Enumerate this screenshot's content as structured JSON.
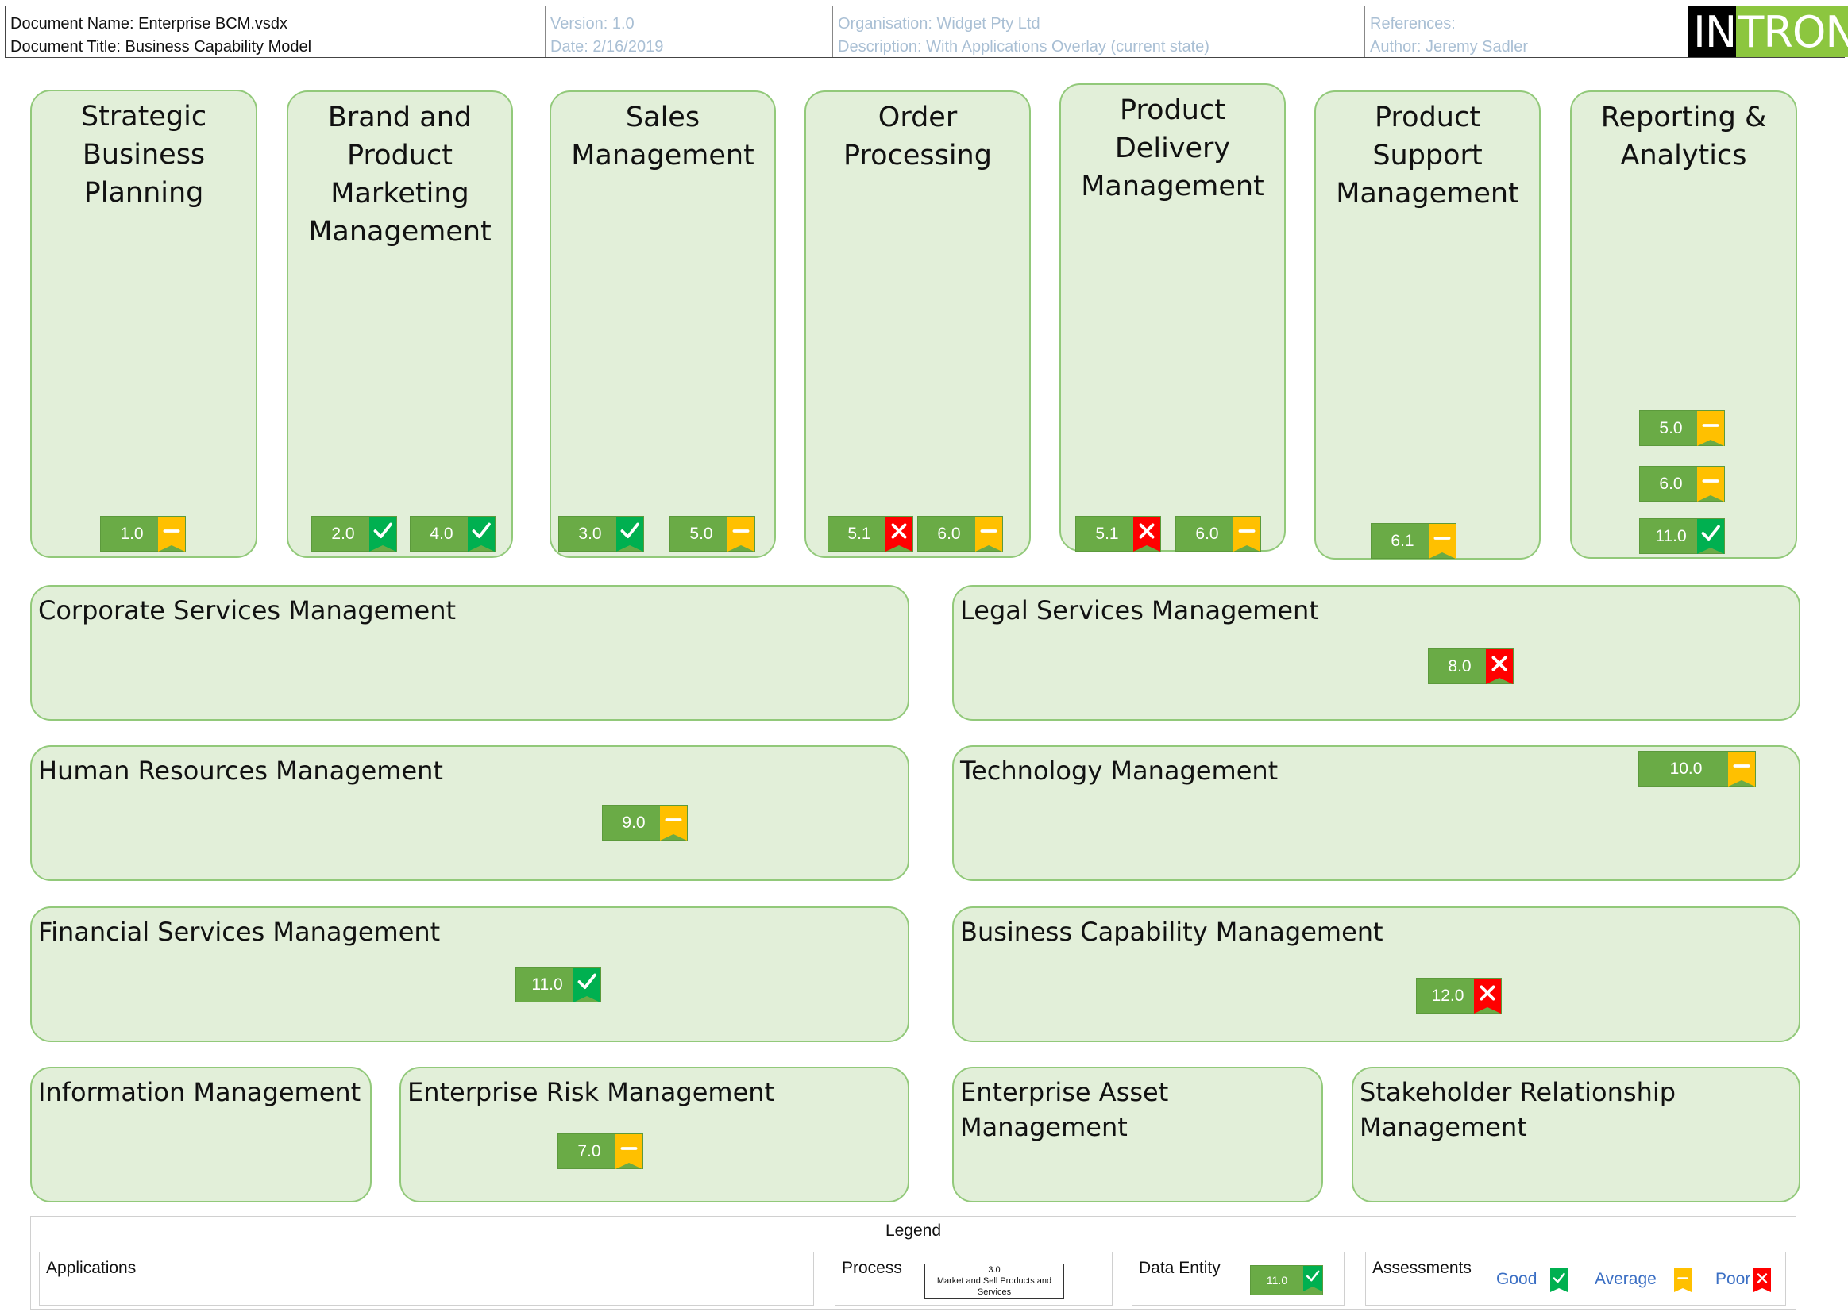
{
  "header": {
    "doc_name": "Document Name: Enterprise BCM.vsdx",
    "doc_title": "Document Title: Business Capability Model",
    "version": "Version: 1.0",
    "date": "Date: 2/16/2019",
    "organisation": "Organisation: Widget Pty Ltd",
    "description": "Description: With Applications Overlay (current state)",
    "references": "References:",
    "author": "Author: Jeremy Sadler",
    "logo_in": "IN",
    "logo_tron": "TRON"
  },
  "colors": {
    "capability_fill": "#e2efd9",
    "capability_border": "#92c97a",
    "badge_fill": "#6aab46",
    "good": "#00b050",
    "average": "#ffc000",
    "poor": "#ff0000"
  },
  "capabilities": [
    {
      "title": "Strategic Business Planning",
      "apps": [
        {
          "label": "1.0",
          "status": "average"
        }
      ]
    },
    {
      "title": "Brand and Product Marketing Management",
      "apps": [
        {
          "label": "2.0",
          "status": "good"
        },
        {
          "label": "4.0",
          "status": "good"
        }
      ]
    },
    {
      "title": "Sales Management",
      "apps": [
        {
          "label": "3.0",
          "status": "good"
        },
        {
          "label": "5.0",
          "status": "average"
        }
      ]
    },
    {
      "title": "Order Processing",
      "apps": [
        {
          "label": "5.1",
          "status": "poor"
        },
        {
          "label": "6.0",
          "status": "average"
        }
      ]
    },
    {
      "title": "Product Delivery Management",
      "apps": [
        {
          "label": "5.1",
          "status": "poor"
        },
        {
          "label": "6.0",
          "status": "average"
        }
      ]
    },
    {
      "title": "Product Support Management",
      "apps": [
        {
          "label": "6.1",
          "status": "average"
        }
      ]
    },
    {
      "title": "Reporting & Analytics",
      "apps": [
        {
          "label": "5.0",
          "status": "average"
        },
        {
          "label": "6.0",
          "status": "average"
        },
        {
          "label": "11.0",
          "status": "good"
        }
      ]
    },
    {
      "title": "Corporate Services Management",
      "apps": []
    },
    {
      "title": "Legal Services Management",
      "apps": [
        {
          "label": "8.0",
          "status": "poor"
        }
      ]
    },
    {
      "title": "Human Resources Management",
      "apps": [
        {
          "label": "9.0",
          "status": "average"
        }
      ]
    },
    {
      "title": "Technology Management",
      "apps": [
        {
          "label": "10.0",
          "status": "average"
        }
      ]
    },
    {
      "title": "Financial Services Management",
      "apps": [
        {
          "label": "11.0",
          "status": "good"
        }
      ]
    },
    {
      "title": "Business Capability Management",
      "apps": [
        {
          "label": "12.0",
          "status": "poor"
        }
      ]
    },
    {
      "title": "Information Management",
      "apps": []
    },
    {
      "title": "Enterprise Risk Management",
      "apps": [
        {
          "label": "7.0",
          "status": "average"
        }
      ]
    },
    {
      "title": "Enterprise Asset Management",
      "apps": []
    },
    {
      "title": "Stakeholder Relationship Management",
      "apps": []
    }
  ],
  "legend": {
    "title": "Legend",
    "applications": "Applications",
    "process": "Process",
    "process_sample_id": "3.0",
    "process_sample_name": "Market and Sell Products and Services",
    "data_entity": "Data Entity",
    "data_entity_sample": {
      "label": "11.0",
      "status": "good"
    },
    "assessments": "Assessments",
    "good": "Good",
    "average": "Average",
    "poor": "Poor"
  }
}
